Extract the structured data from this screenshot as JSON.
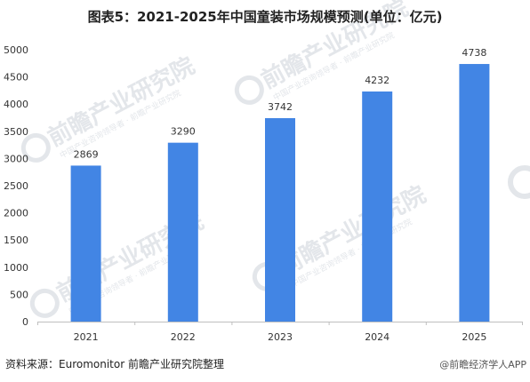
{
  "title": "图表5：2021-2025年中国童装市场规模预测(单位：亿元)",
  "source": "资料来源：Euromonitor 前瞻产业研究院整理",
  "credit": "@前瞻经济学人APP",
  "watermark": {
    "main": "前瞻产业研究院",
    "sub": "中国产业咨询领导者 · 前瞻产业研究院"
  },
  "colors": {
    "bar": "#4285E4",
    "axis": "#bfbfbf",
    "watermark": "#e3e6ea"
  },
  "chart_data": {
    "type": "bar",
    "title": "图表5：2021-2025年中国童装市场规模预测(单位：亿元)",
    "xlabel": "",
    "ylabel": "",
    "categories": [
      "2021",
      "2022",
      "2023",
      "2024",
      "2025"
    ],
    "values": [
      2869,
      3290,
      3742,
      4232,
      4738
    ],
    "ylim": [
      0,
      5000
    ],
    "yticks": [
      0,
      500,
      1000,
      1500,
      2000,
      2500,
      3000,
      3500,
      4000,
      4500,
      5000
    ],
    "grid": false,
    "legend": "none"
  }
}
